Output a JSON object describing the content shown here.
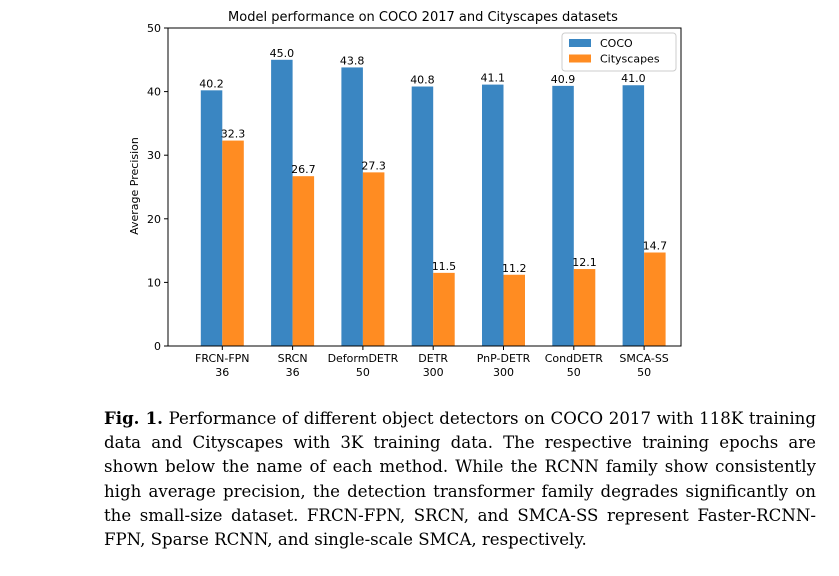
{
  "chart_data": {
    "type": "bar",
    "title": "Model performance on COCO 2017 and Cityscapes datasets",
    "xlabel": "",
    "ylabel": "Average Precision",
    "ylim": [
      0,
      50
    ],
    "yticks": [
      0,
      10,
      20,
      30,
      40,
      50
    ],
    "categories": [
      {
        "name": "FRCN-FPN",
        "epochs": "36"
      },
      {
        "name": "SRCN",
        "epochs": "36"
      },
      {
        "name": "DeformDETR",
        "epochs": "50"
      },
      {
        "name": "DETR",
        "epochs": "300"
      },
      {
        "name": "PnP-DETR",
        "epochs": "300"
      },
      {
        "name": "CondDETR",
        "epochs": "50"
      },
      {
        "name": "SMCA-SS",
        "epochs": "50"
      }
    ],
    "series": [
      {
        "name": "COCO",
        "color": "#3a86c2",
        "values": [
          40.2,
          45.0,
          43.8,
          40.8,
          41.1,
          40.9,
          41.0
        ]
      },
      {
        "name": "Cityscapes",
        "color": "#ff8c22",
        "values": [
          32.3,
          26.7,
          27.3,
          11.5,
          11.2,
          12.1,
          14.7
        ]
      }
    ],
    "legend_position": "top-right",
    "grid": false
  },
  "caption": {
    "label": "Fig. 1.",
    "text": "Performance of different object detectors on COCO 2017 with 118K training data and Cityscapes with 3K training data. The respective training epochs are shown below the name of each method. While the RCNN family show consistently high average precision, the detection transformer family degrades significantly on the small-size dataset. FRCN-FPN, SRCN, and SMCA-SS represent Faster-RCNN-FPN, Sparse RCNN, and single-scale SMCA, respectively."
  }
}
